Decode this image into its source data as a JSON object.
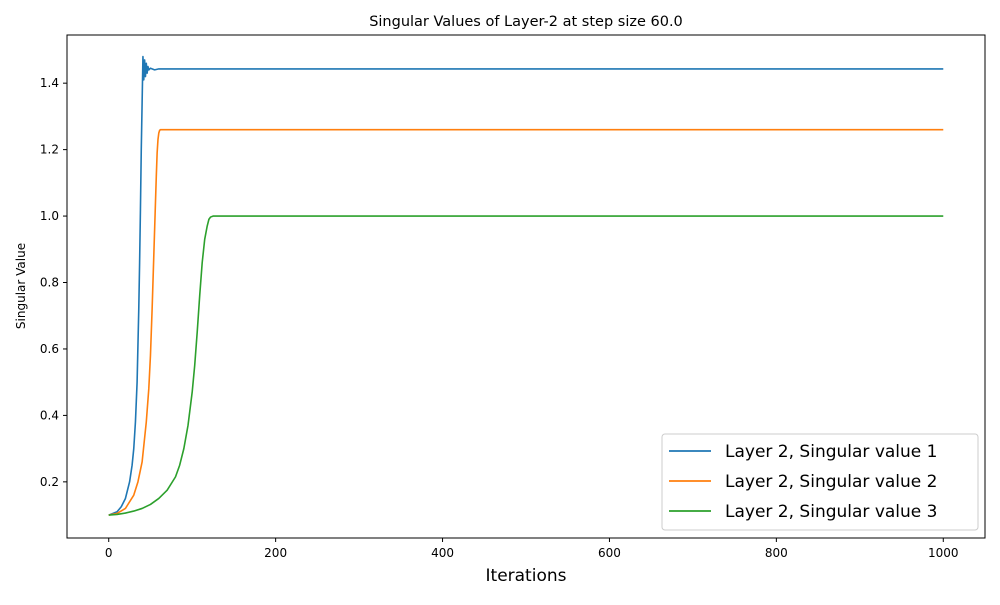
{
  "chart_data": {
    "type": "line",
    "title": "Singular Values of Layer-2 at step size 60.0",
    "xlabel": "Iterations",
    "ylabel": "Singular Value",
    "xlim": [
      -50,
      1050
    ],
    "ylim": [
      0.031,
      1.545
    ],
    "x_ticks": [
      0,
      200,
      400,
      600,
      800,
      1000
    ],
    "y_ticks": [
      0.2,
      0.4,
      0.6,
      0.8,
      1.0,
      1.2,
      1.4
    ],
    "x_tick_labels": [
      "0",
      "200",
      "400",
      "600",
      "800",
      "1000"
    ],
    "y_tick_labels": [
      "0.2",
      "0.4",
      "0.6",
      "0.8",
      "1.0",
      "1.2",
      "1.4"
    ],
    "grid": false,
    "legend_position": "lower-right",
    "series": [
      {
        "name": "Layer 2, Singular value 1",
        "color": "#1f77b4",
        "x": [
          0,
          10,
          15,
          20,
          25,
          28,
          30,
          32,
          34,
          36,
          37,
          38,
          39,
          40,
          41,
          42,
          43,
          44,
          45,
          46,
          47,
          48,
          50,
          55,
          60,
          80,
          100,
          200,
          400,
          600,
          800,
          1000
        ],
        "y": [
          0.1,
          0.11,
          0.125,
          0.15,
          0.2,
          0.25,
          0.3,
          0.38,
          0.5,
          0.72,
          0.86,
          1.02,
          1.2,
          1.34,
          1.48,
          1.41,
          1.47,
          1.42,
          1.46,
          1.43,
          1.45,
          1.44,
          1.445,
          1.44,
          1.443,
          1.443,
          1.443,
          1.443,
          1.443,
          1.443,
          1.443,
          1.443
        ]
      },
      {
        "name": "Layer 2, Singular value 2",
        "color": "#ff7f0e",
        "x": [
          0,
          10,
          20,
          30,
          35,
          40,
          45,
          48,
          50,
          52,
          54,
          56,
          57,
          58,
          59,
          60,
          61,
          62,
          65,
          70,
          100,
          200,
          400,
          600,
          800,
          1000
        ],
        "y": [
          0.1,
          0.105,
          0.12,
          0.16,
          0.2,
          0.26,
          0.38,
          0.48,
          0.58,
          0.72,
          0.88,
          1.04,
          1.12,
          1.19,
          1.23,
          1.25,
          1.258,
          1.26,
          1.26,
          1.26,
          1.26,
          1.26,
          1.26,
          1.26,
          1.26,
          1.26
        ]
      },
      {
        "name": "Layer 2, Singular value 3",
        "color": "#2ca02c",
        "x": [
          0,
          10,
          20,
          30,
          40,
          50,
          60,
          70,
          80,
          85,
          90,
          95,
          100,
          103,
          106,
          109,
          112,
          115,
          118,
          120,
          122,
          125,
          130,
          140,
          200,
          400,
          600,
          800,
          1000
        ],
        "y": [
          0.1,
          0.102,
          0.106,
          0.112,
          0.12,
          0.132,
          0.15,
          0.175,
          0.215,
          0.25,
          0.3,
          0.37,
          0.47,
          0.55,
          0.65,
          0.76,
          0.86,
          0.93,
          0.97,
          0.99,
          0.997,
          1.0,
          1.0,
          1.0,
          1.0,
          1.0,
          1.0,
          1.0,
          1.0
        ]
      }
    ]
  }
}
